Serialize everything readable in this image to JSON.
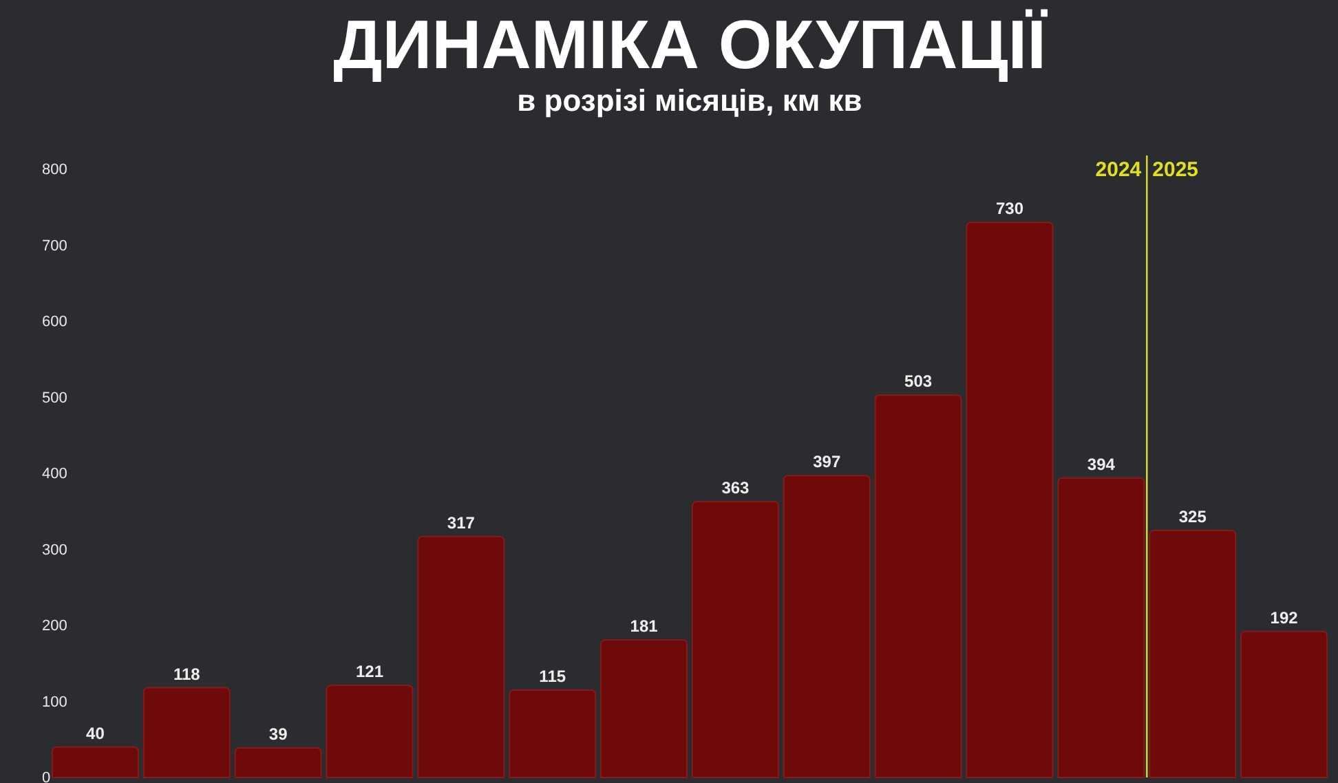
{
  "chart_data": {
    "type": "bar",
    "title": "ДИНАМІКА ОКУПАЦІЇ",
    "subtitle": "в розрізі місяців, км кв",
    "categories": [
      null,
      null,
      null,
      null,
      null,
      null,
      null,
      null,
      null,
      null,
      null,
      null,
      null,
      null
    ],
    "values": [
      40,
      118,
      39,
      121,
      317,
      115,
      181,
      363,
      397,
      503,
      730,
      394,
      325,
      192
    ],
    "color": "#6e0a0a",
    "ylim": [
      0,
      800
    ],
    "yticks": [
      0,
      100,
      200,
      300,
      400,
      500,
      600,
      700,
      800
    ],
    "grid": false,
    "legend": false,
    "data_labels": true,
    "tick_labels": "y",
    "annotations": [
      "2024",
      "2025"
    ]
  }
}
